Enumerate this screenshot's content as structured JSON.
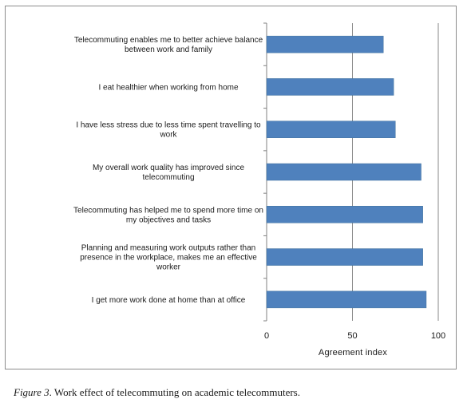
{
  "chart_data": {
    "type": "bar",
    "orientation": "horizontal",
    "categories": [
      [
        "Telecommuting enables me to better achieve balance",
        "between work and family"
      ],
      [
        "I eat healthier when working from home"
      ],
      [
        "I have less stress due to less time spent travelling to",
        "work"
      ],
      [
        "My overall work quality has improved since",
        "telecommuting"
      ],
      [
        "Telecommuting has helped me to spend more time on",
        "my objectives and tasks"
      ],
      [
        "Planning and measuring work outputs rather than",
        "presence in the workplace, makes me an effective",
        "worker"
      ],
      [
        "I get more work done at home than at office"
      ]
    ],
    "values": [
      68,
      74,
      75,
      90,
      91,
      91,
      93
    ],
    "xlabel": "Agreement  index",
    "ylabel": "",
    "xlim": [
      0,
      100
    ],
    "xticks": [
      0,
      50,
      100
    ],
    "grid": "vertical",
    "bar_color": "#4f81bd"
  },
  "caption": {
    "figure_label": "Figure 3",
    "text": ". Work effect of telecommuting on academic telecommuters."
  }
}
